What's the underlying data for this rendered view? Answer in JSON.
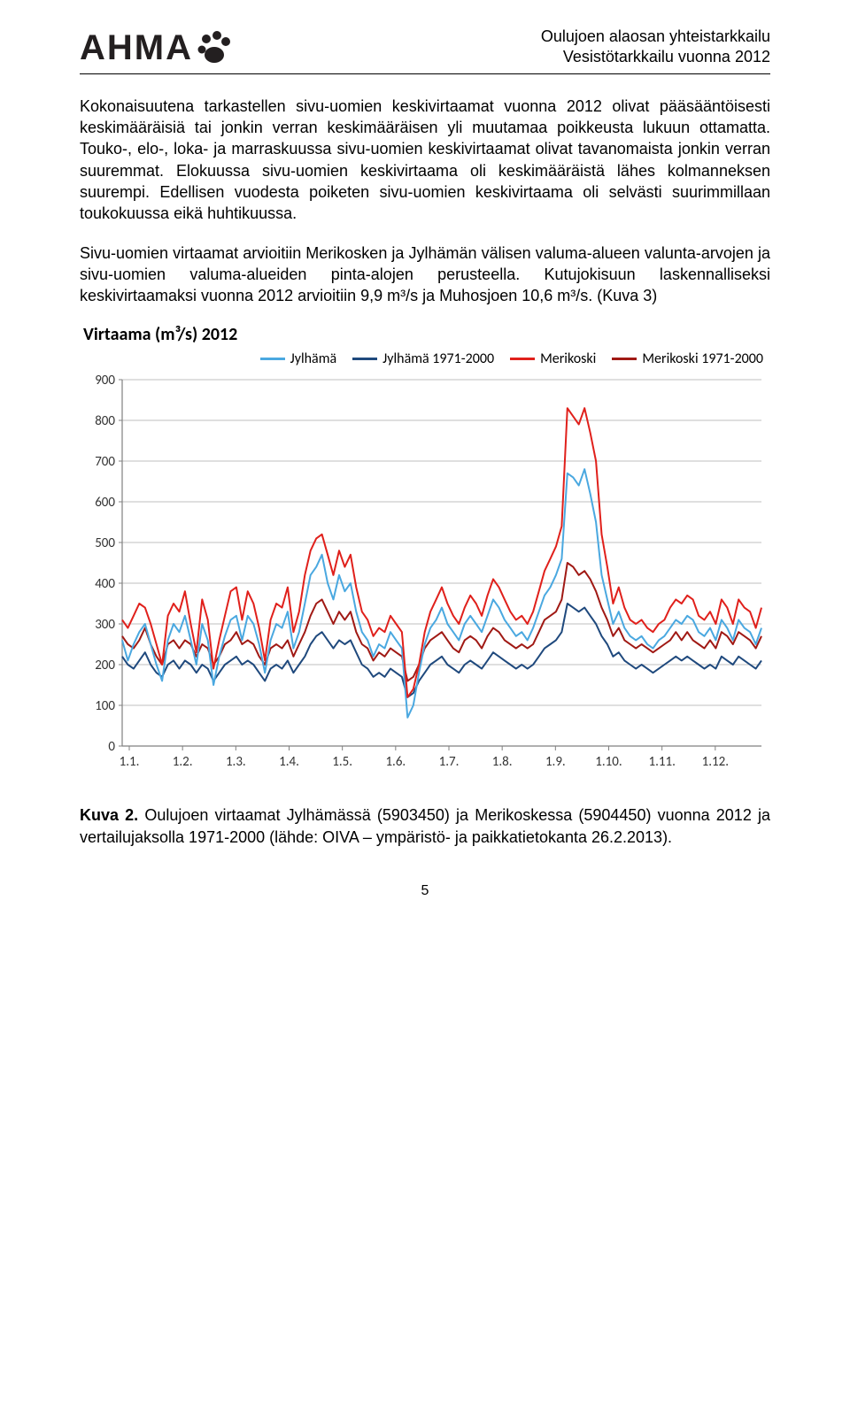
{
  "header": {
    "logo_text": "AHMA",
    "right_line1": "Oulujoen alaosan yhteistarkkailu",
    "right_line2": "Vesistötarkkailu vuonna 2012"
  },
  "paragraphs": {
    "p1": "Kokonaisuutena tarkastellen sivu-uomien keskivirtaamat vuonna 2012 olivat pääsääntöisesti keskimääräisiä tai jonkin verran keskimääräisen yli muutamaa poikkeusta lukuun ottamatta. Touko-, elo-, loka- ja marraskuussa sivu-uomien keskivirtaamat olivat tavanomaista jonkin verran suuremmat. Elokuussa sivu-uomien keskivirtaama oli keskimääräistä lähes kolmanneksen suurempi. Edellisen vuodesta poiketen sivu-uomien keskivirtaama oli selvästi suurimmillaan toukokuussa eikä huhtikuussa.",
    "p2": "Sivu-uomien virtaamat arvioitiin Merikosken ja Jylhämän välisen valuma-alueen valunta-arvojen ja sivu-uomien valuma-alueiden pinta-alojen perusteella. Kutujokisuun laskennalliseksi keskivirtaamaksi vuonna 2012 arvioitiin 9,9 m³/s ja Muhosjoen 10,6 m³/s. (Kuva 3)"
  },
  "chart": {
    "title": "Virtaama (m³/s) 2012",
    "type": "line",
    "ylim": [
      0,
      900
    ],
    "ytick_step": 100,
    "yticks": [
      0,
      100,
      200,
      300,
      400,
      500,
      600,
      700,
      800,
      900
    ],
    "xlabels": [
      "1.1.",
      "1.2.",
      "1.3.",
      "1.4.",
      "1.5.",
      "1.6.",
      "1.7.",
      "1.8.",
      "1.9.",
      "1.10.",
      "1.11.",
      "1.12."
    ],
    "grid_color": "#bfbfbf",
    "axis_color": "#808080",
    "background_color": "#ffffff",
    "line_width": 2,
    "tick_font_size": 15,
    "legend": [
      {
        "label": "Jylhämä",
        "color": "#4aa8e0"
      },
      {
        "label": "Jylhämä 1971-2000",
        "color": "#1f497d"
      },
      {
        "label": "Merikoski",
        "color": "#e0201b"
      },
      {
        "label": "Merikoski 1971-2000",
        "color": "#a01914"
      }
    ],
    "series": {
      "jylhama": {
        "color": "#4aa8e0",
        "values": [
          260,
          210,
          250,
          280,
          300,
          250,
          200,
          160,
          260,
          300,
          280,
          320,
          260,
          200,
          300,
          260,
          150,
          220,
          270,
          310,
          320,
          260,
          320,
          300,
          250,
          180,
          260,
          300,
          290,
          330,
          240,
          280,
          350,
          420,
          440,
          470,
          400,
          360,
          420,
          380,
          400,
          330,
          280,
          260,
          220,
          250,
          240,
          280,
          260,
          240,
          70,
          100,
          180,
          250,
          290,
          310,
          340,
          300,
          280,
          260,
          300,
          320,
          300,
          280,
          320,
          360,
          340,
          310,
          290,
          270,
          280,
          260,
          290,
          330,
          370,
          390,
          420,
          460,
          670,
          660,
          640,
          680,
          620,
          550,
          420,
          360,
          300,
          330,
          290,
          270,
          260,
          270,
          250,
          240,
          260,
          270,
          290,
          310,
          300,
          320,
          310,
          280,
          270,
          290,
          260,
          310,
          290,
          260,
          310,
          290,
          280,
          250,
          290
        ]
      },
      "jylhama_hist": {
        "color": "#1f497d",
        "values": [
          220,
          200,
          190,
          210,
          230,
          200,
          180,
          170,
          200,
          210,
          190,
          210,
          200,
          180,
          200,
          190,
          160,
          180,
          200,
          210,
          220,
          200,
          210,
          200,
          180,
          160,
          190,
          200,
          190,
          210,
          180,
          200,
          220,
          250,
          270,
          280,
          260,
          240,
          260,
          250,
          260,
          230,
          200,
          190,
          170,
          180,
          170,
          190,
          180,
          170,
          120,
          130,
          160,
          180,
          200,
          210,
          220,
          200,
          190,
          180,
          200,
          210,
          200,
          190,
          210,
          230,
          220,
          210,
          200,
          190,
          200,
          190,
          200,
          220,
          240,
          250,
          260,
          280,
          350,
          340,
          330,
          340,
          320,
          300,
          270,
          250,
          220,
          230,
          210,
          200,
          190,
          200,
          190,
          180,
          190,
          200,
          210,
          220,
          210,
          220,
          210,
          200,
          190,
          200,
          190,
          220,
          210,
          200,
          220,
          210,
          200,
          190,
          210
        ]
      },
      "merikoski": {
        "color": "#e0201b",
        "values": [
          310,
          290,
          320,
          350,
          340,
          300,
          250,
          200,
          320,
          350,
          330,
          380,
          300,
          230,
          360,
          310,
          190,
          260,
          320,
          380,
          390,
          310,
          380,
          350,
          290,
          210,
          310,
          350,
          340,
          390,
          280,
          330,
          420,
          480,
          510,
          520,
          470,
          420,
          480,
          440,
          470,
          390,
          330,
          310,
          270,
          290,
          280,
          320,
          300,
          280,
          120,
          140,
          200,
          280,
          330,
          360,
          390,
          350,
          320,
          300,
          340,
          370,
          350,
          320,
          370,
          410,
          390,
          360,
          330,
          310,
          320,
          300,
          330,
          380,
          430,
          460,
          490,
          540,
          830,
          810,
          790,
          830,
          770,
          700,
          520,
          440,
          350,
          390,
          340,
          310,
          300,
          310,
          290,
          280,
          300,
          310,
          340,
          360,
          350,
          370,
          360,
          320,
          310,
          330,
          300,
          360,
          340,
          300,
          360,
          340,
          330,
          290,
          340
        ]
      },
      "merikoski_hist": {
        "color": "#a01914",
        "values": [
          270,
          250,
          240,
          260,
          290,
          250,
          220,
          200,
          250,
          260,
          240,
          260,
          250,
          220,
          250,
          240,
          200,
          220,
          250,
          260,
          280,
          250,
          260,
          250,
          220,
          200,
          240,
          250,
          240,
          260,
          220,
          250,
          280,
          320,
          350,
          360,
          330,
          300,
          330,
          310,
          330,
          280,
          250,
          240,
          210,
          230,
          220,
          240,
          230,
          220,
          160,
          170,
          200,
          240,
          260,
          270,
          280,
          260,
          240,
          230,
          260,
          270,
          260,
          240,
          270,
          290,
          280,
          260,
          250,
          240,
          250,
          240,
          250,
          280,
          310,
          320,
          330,
          360,
          450,
          440,
          420,
          430,
          410,
          380,
          340,
          310,
          270,
          290,
          260,
          250,
          240,
          250,
          240,
          230,
          240,
          250,
          260,
          280,
          260,
          280,
          260,
          250,
          240,
          260,
          240,
          280,
          270,
          250,
          280,
          270,
          260,
          240,
          270
        ]
      }
    }
  },
  "caption": {
    "label": "Kuva 2.",
    "text": " Oulujoen virtaamat Jylhämässä (5903450) ja Merikoskessa (5904450) vuonna 2012 ja vertailujaksolla 1971-2000 (lähde: OIVA – ympäristö- ja paikkatietokanta 26.2.2013)."
  },
  "page_number": "5"
}
